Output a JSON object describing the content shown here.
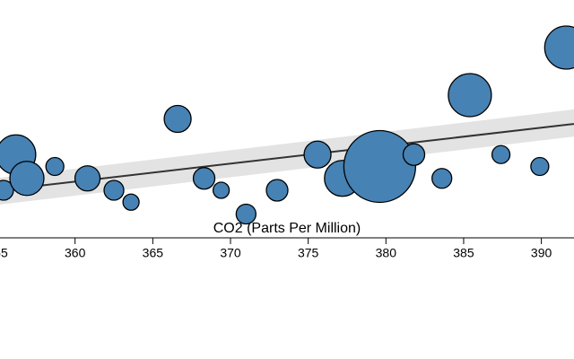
{
  "chart_data": {
    "type": "scatter",
    "x_label": "CO2 (Parts Per Million)",
    "x": [
      355.4,
      356.2,
      356.9,
      358.7,
      360.8,
      362.5,
      363.6,
      366.6,
      368.3,
      369.4,
      371.0,
      373.0,
      375.6,
      377.2,
      379.6,
      381.8,
      383.6,
      385.4,
      387.4,
      389.9,
      391.6
    ],
    "values": [
      2.0,
      3.5,
      2.5,
      3.0,
      2.5,
      2.0,
      1.5,
      5.0,
      2.5,
      2.0,
      1.0,
      2.0,
      3.5,
      2.5,
      3.0,
      3.5,
      2.5,
      6.0,
      3.5,
      3.0,
      8.0
    ],
    "sizes": [
      11,
      22,
      19,
      10,
      14,
      11,
      9,
      15,
      12,
      9,
      11,
      12,
      15,
      20,
      40,
      12,
      11,
      24,
      10,
      10,
      24
    ],
    "color": "#4682b4",
    "trend": {
      "x": [
        355.17,
        392.1
      ],
      "values": [
        2.0,
        4.79
      ],
      "lower": [
        1.4,
        4.26
      ],
      "upper": [
        2.53,
        5.4
      ],
      "color": "#333333",
      "band_color": "#e3e3e3"
    },
    "xlim": [
      355.17,
      392.1
    ],
    "xticks": [
      355,
      360,
      365,
      370,
      375,
      380,
      385,
      390
    ],
    "ylim": [
      0,
      10
    ]
  }
}
